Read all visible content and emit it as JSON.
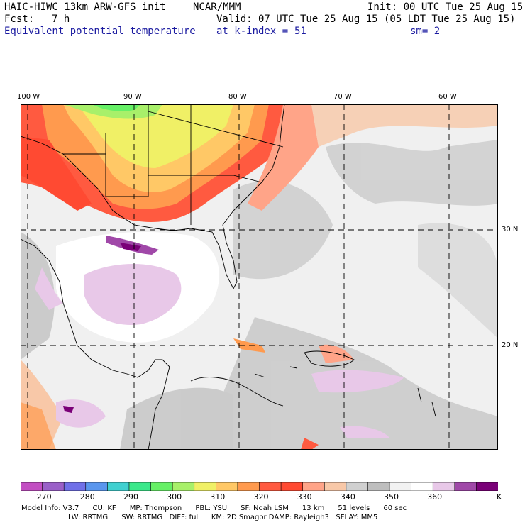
{
  "header": {
    "model": "HAIC-HIWC 13km ARW-GFS init",
    "org": "NCAR/MMM",
    "init": "Init: 00 UTC Tue 25 Aug 15",
    "fcst_label": "Fcst:",
    "fcst_value": "7 h",
    "valid": "Valid: 07 UTC Tue 25 Aug 15 (05 LDT Tue 25 Aug 15)",
    "field": "Equivalent potential temperature",
    "level": "at k-index =",
    "level_value": "51",
    "smoothing": "sm= 2"
  },
  "map": {
    "lon_labels": [
      "100 W",
      "90 W",
      "80 W",
      "70 W",
      "60 W"
    ],
    "lat_labels": [
      "30 N",
      "20 N"
    ]
  },
  "colorbar": {
    "unit": "K",
    "ticks": [
      "270",
      "280",
      "290",
      "300",
      "310",
      "320",
      "330",
      "340",
      "350",
      "360"
    ],
    "colors": [
      "#c24ec2",
      "#9a60c8",
      "#7070e8",
      "#5a96ee",
      "#40d0d0",
      "#3ae88a",
      "#66f066",
      "#a8f06a",
      "#f0f066",
      "#ffc866",
      "#ff9a4e",
      "#ff5a40",
      "#ff4a32",
      "#ffa488",
      "#f8c8a8",
      "#d0d0d0",
      "#bebebe",
      "#f2f2f2",
      "#ffffff",
      "#e8c8e8",
      "#a048a8",
      "#7a0078"
    ]
  },
  "footer": {
    "line1": "Model Info: V3.7      CU: KF      MP: Thompson      PBL: YSU      SF: Noah LSM      13 km      51 levels      60 sec",
    "line2": "LW: RRTMG      SW: RRTMG   DIFF: full     KM: 2D Smagor DAMP: Rayleigh3   SFLAY: MM5"
  }
}
